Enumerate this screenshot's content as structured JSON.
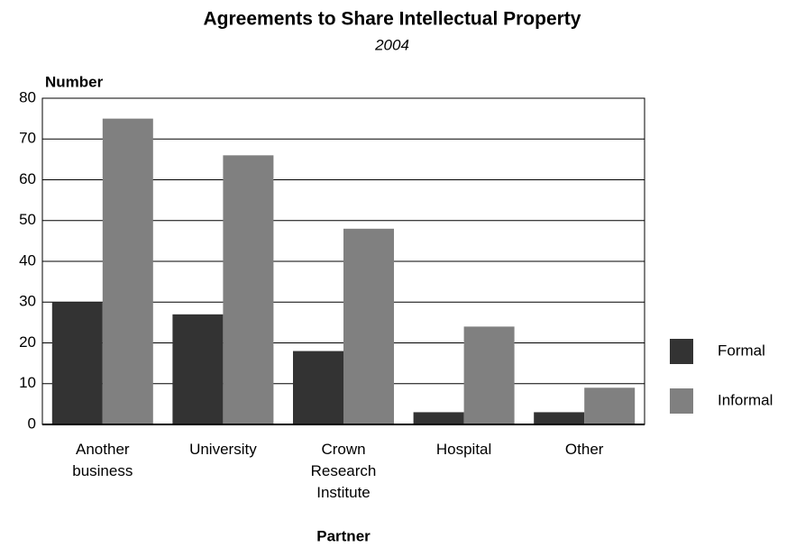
{
  "chart_data": {
    "type": "bar",
    "title": "Agreements to Share Intellectual Property",
    "subtitle": "2004",
    "y_label": "Number",
    "x_label": "Partner",
    "categories": [
      "Another business",
      "University",
      "Crown Research Institute",
      "Hospital",
      "Other"
    ],
    "series": [
      {
        "name": "Formal",
        "color": "#333333",
        "values": [
          30,
          27,
          18,
          3,
          3
        ]
      },
      {
        "name": "Informal",
        "color": "#808080",
        "values": [
          75,
          66,
          48,
          24,
          9
        ]
      }
    ],
    "ylim": [
      0,
      80
    ],
    "yticks": [
      0,
      10,
      20,
      30,
      40,
      50,
      60,
      70,
      80
    ],
    "grid": true,
    "legend": "right"
  }
}
